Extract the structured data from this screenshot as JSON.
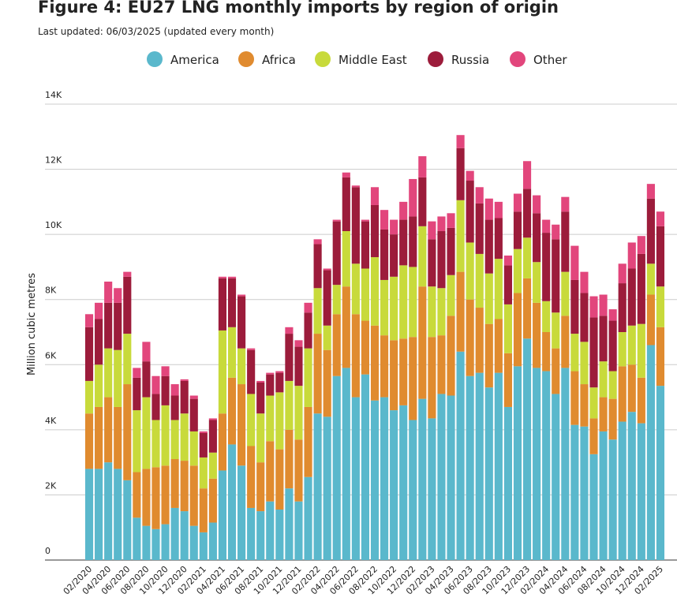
{
  "chart_data": {
    "type": "stacked_bar",
    "title": "Figure 4: EU27 LNG monthly imports by region of origin",
    "subtitle": "Last updated: 06/03/2025 (updated every month)",
    "y_label": "Million cubic metres",
    "categories": [
      "02/2020",
      null,
      "04/2020",
      null,
      "06/2020",
      null,
      "08/2020",
      null,
      "10/2020",
      null,
      "12/2020",
      null,
      "02/2021",
      null,
      "04/2021",
      null,
      "06/2021",
      null,
      "08/2021",
      null,
      "10/2021",
      null,
      "12/2021",
      null,
      "02/2022",
      null,
      "04/2022",
      null,
      "06/2022",
      null,
      "08/2022",
      null,
      "10/2022",
      null,
      "12/2022",
      null,
      "02/2023",
      null,
      "04/2023",
      null,
      "06/2023",
      null,
      "08/2023",
      null,
      "10/2023",
      null,
      "12/2023",
      null,
      "02/2024",
      null,
      "04/2024",
      null,
      "06/2024",
      null,
      "08/2024",
      null,
      "10/2024",
      null,
      "12/2024",
      null,
      "02/2025"
    ],
    "series": [
      {
        "name": "America",
        "color": "#5ab8cc",
        "values": [
          2800,
          2800,
          3000,
          2800,
          2450,
          1300,
          1050,
          950,
          1100,
          1600,
          1500,
          1050,
          850,
          1150,
          2750,
          3550,
          2900,
          1600,
          1500,
          1800,
          1550,
          2200,
          1800,
          2550,
          4500,
          4400,
          5650,
          5900,
          5000,
          5700,
          4900,
          5000,
          4600,
          4750,
          4300,
          4950,
          4350,
          5100,
          5050,
          6400,
          5650,
          5750,
          5300,
          5750,
          4700,
          5950,
          6800,
          5900,
          5800,
          5100,
          5900,
          4150,
          4100,
          3250,
          3950,
          3700,
          4250,
          4550,
          4200,
          6600,
          5350
        ]
      },
      {
        "name": "Africa",
        "color": "#e08b2f",
        "values": [
          1700,
          1900,
          2000,
          1900,
          2950,
          1400,
          1750,
          1900,
          1800,
          1500,
          1550,
          1850,
          1350,
          1350,
          1750,
          2050,
          2500,
          1900,
          1500,
          1850,
          1850,
          1800,
          1900,
          2150,
          2450,
          2050,
          1900,
          2500,
          2550,
          1650,
          2300,
          1900,
          2150,
          2050,
          2550,
          3450,
          2500,
          1800,
          2450,
          2450,
          2350,
          2000,
          1950,
          1650,
          1650,
          2250,
          1850,
          2000,
          1200,
          1400,
          1600,
          1650,
          1300,
          1100,
          1050,
          1250,
          1700,
          1450,
          1400,
          1550,
          1800
        ]
      },
      {
        "name": "Middle East",
        "color": "#c8da3b",
        "values": [
          1000,
          1300,
          1500,
          1750,
          1550,
          1900,
          2200,
          1450,
          1850,
          1200,
          1450,
          1050,
          950,
          800,
          2550,
          1550,
          1100,
          1600,
          1500,
          1400,
          1750,
          1500,
          1650,
          1800,
          1400,
          750,
          900,
          1700,
          1550,
          1600,
          2100,
          1700,
          1950,
          2250,
          2150,
          1850,
          1550,
          1450,
          1250,
          2200,
          1750,
          1650,
          1550,
          1850,
          1500,
          1350,
          1250,
          1250,
          950,
          1100,
          1350,
          1150,
          1300,
          950,
          1100,
          850,
          1050,
          1200,
          1650,
          950,
          1250
        ]
      },
      {
        "name": "Russia",
        "color": "#9c1c3b",
        "values": [
          1650,
          1400,
          1400,
          1450,
          1750,
          1000,
          1100,
          800,
          900,
          750,
          1000,
          1000,
          750,
          1000,
          1600,
          1500,
          1600,
          1350,
          950,
          650,
          600,
          1450,
          1200,
          1100,
          1350,
          1700,
          1950,
          1650,
          2350,
          1450,
          1600,
          1550,
          1300,
          1400,
          1550,
          1500,
          1450,
          1750,
          1450,
          1600,
          1900,
          1550,
          1650,
          1250,
          1200,
          1150,
          1500,
          1500,
          2100,
          2250,
          1850,
          1650,
          1500,
          2150,
          1400,
          1550,
          1500,
          1750,
          2150,
          2000,
          1850
        ]
      },
      {
        "name": "Other",
        "color": "#e2467c",
        "values": [
          400,
          500,
          650,
          450,
          150,
          300,
          600,
          550,
          300,
          350,
          50,
          100,
          50,
          50,
          50,
          50,
          50,
          50,
          50,
          50,
          50,
          200,
          200,
          300,
          150,
          50,
          50,
          150,
          50,
          50,
          550,
          600,
          450,
          550,
          1150,
          650,
          550,
          450,
          450,
          400,
          300,
          500,
          650,
          500,
          300,
          550,
          850,
          550,
          400,
          450,
          450,
          1050,
          650,
          650,
          650,
          350,
          600,
          800,
          550,
          450,
          450
        ]
      }
    ],
    "ylim": [
      0,
      14000
    ],
    "yticks": [
      {
        "value": 0,
        "label": "0"
      },
      {
        "value": 2000,
        "label": "2K"
      },
      {
        "value": 4000,
        "label": "4K"
      },
      {
        "value": 6000,
        "label": "6K"
      },
      {
        "value": 8000,
        "label": "8K"
      },
      {
        "value": 10000,
        "label": "10K"
      },
      {
        "value": 12000,
        "label": "12K"
      },
      {
        "value": 14000,
        "label": "14K"
      }
    ],
    "grid": true
  }
}
